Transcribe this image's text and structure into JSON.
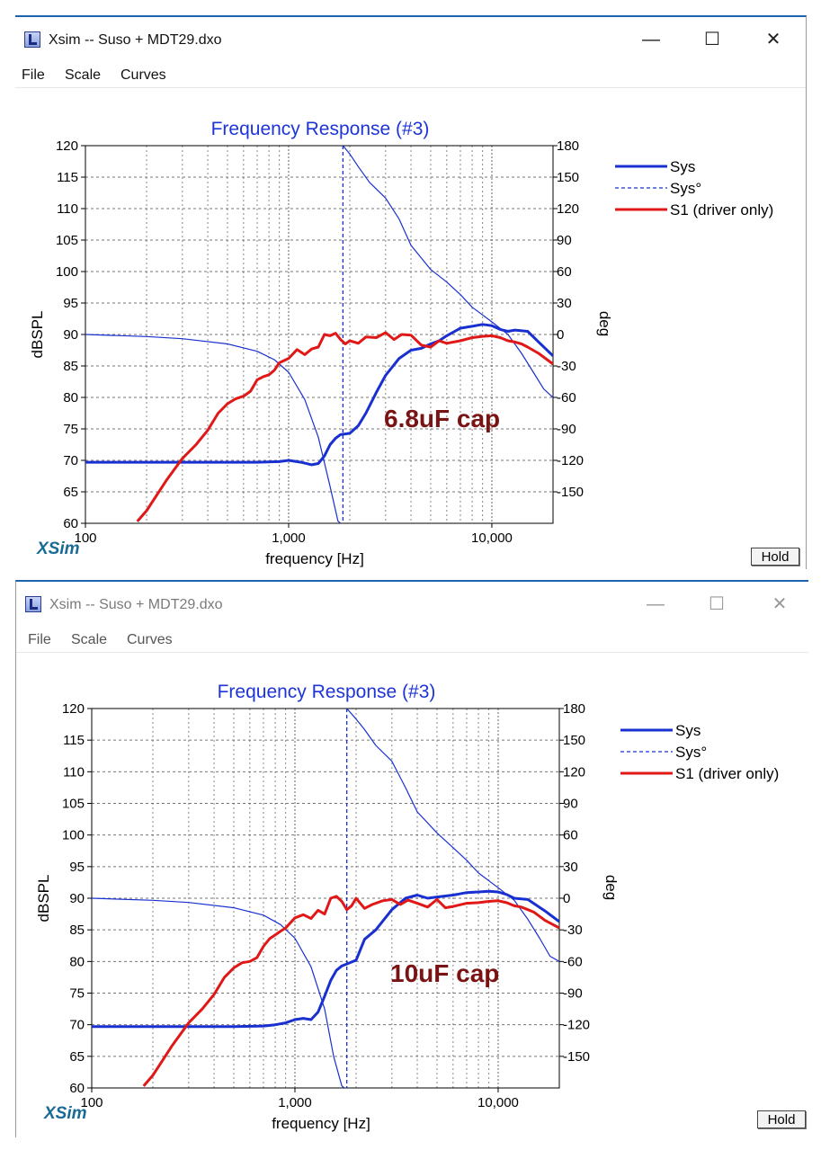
{
  "windows": [
    {
      "title": "Xsim -- Suso + MDT29.dxo",
      "menu": [
        "File",
        "Scale",
        "Curves"
      ],
      "window_controls": {
        "minimize": "—",
        "maximize": "☐",
        "close": "✕"
      },
      "annotation": "6.8uF cap",
      "logo": "XSim",
      "hold_label": "Hold"
    },
    {
      "title": "Xsim -- Suso + MDT29.dxo",
      "menu": [
        "File",
        "Scale",
        "Curves"
      ],
      "window_controls": {
        "minimize": "—",
        "maximize": "☐",
        "close": "✕"
      },
      "annotation": "10uF cap",
      "logo": "XSim",
      "hold_label": "Hold"
    }
  ],
  "colors": {
    "title_blue": "#1d35d8",
    "sys": "#1930d0",
    "driver": "#e01818",
    "annotation": "#7a1414",
    "active_border": "#1f62b0"
  },
  "chart_data": [
    {
      "type": "line",
      "title": "Frequency Response (#3)",
      "xlabel": "frequency [Hz]",
      "ylabel": "dBSPL",
      "y2label": "deg",
      "xscale": "log",
      "xlim": [
        100,
        20000
      ],
      "ylim": [
        60,
        120
      ],
      "y2lim": [
        -180,
        180
      ],
      "xticks": [
        "100",
        "1,000",
        "10,000"
      ],
      "yticks": [
        "60",
        "65",
        "70",
        "75",
        "80",
        "85",
        "90",
        "95",
        "100",
        "105",
        "110",
        "115",
        "120"
      ],
      "y2ticks": [
        "-150",
        "-120",
        "-90",
        "-60",
        "-30",
        "0",
        "30",
        "60",
        "90",
        "120",
        "150",
        "180"
      ],
      "grid": true,
      "legend_position": "right",
      "series": [
        {
          "name": "Sys",
          "axis": "left",
          "style": "solid-thick",
          "x": [
            100,
            200,
            400,
            700,
            900,
            1000,
            1150,
            1300,
            1400,
            1500,
            1600,
            1700,
            1800,
            1900,
            2000,
            2200,
            2400,
            2700,
            3000,
            3500,
            4000,
            4500,
            5000,
            5500,
            6000,
            7000,
            8000,
            9000,
            10000,
            11000,
            12000,
            13000,
            15000,
            17000,
            20000
          ],
          "y": [
            69.7,
            69.7,
            69.7,
            69.7,
            69.8,
            70.0,
            69.7,
            69.3,
            69.5,
            70.7,
            72.5,
            73.5,
            74.1,
            74.2,
            74.3,
            75.5,
            77.5,
            80.8,
            83.5,
            86.2,
            87.5,
            87.8,
            88.5,
            89.0,
            89.8,
            91.0,
            91.3,
            91.6,
            91.4,
            90.8,
            90.5,
            90.7,
            90.5,
            88.8,
            86.6
          ]
        },
        {
          "name": "Sys°",
          "axis": "right",
          "style": "dashed",
          "x": [
            100,
            200,
            300,
            500,
            700,
            850,
            1000,
            1200,
            1400,
            1600,
            1750,
            1800,
            1850,
            2000,
            2200,
            2500,
            3000,
            3500,
            4000,
            5000,
            6000,
            7000,
            8000,
            10000,
            12000,
            14000,
            16000,
            18000,
            20000
          ],
          "y": [
            0,
            -2,
            -4,
            -9,
            -16,
            -24,
            -36,
            -62,
            -98,
            -145,
            -178,
            -180,
            180,
            172,
            160,
            145,
            130,
            110,
            85,
            62,
            50,
            38,
            26,
            12,
            0,
            -18,
            -36,
            -52,
            -60
          ]
        },
        {
          "name": "S1 (driver only)",
          "axis": "left",
          "style": "solid-thick",
          "x": [
            180,
            200,
            250,
            300,
            350,
            400,
            450,
            500,
            550,
            600,
            650,
            700,
            750,
            800,
            850,
            900,
            1000,
            1100,
            1200,
            1300,
            1400,
            1500,
            1600,
            1700,
            1800,
            1900,
            2000,
            2200,
            2400,
            2700,
            3000,
            3300,
            3600,
            4000,
            4500,
            5000,
            5500,
            6000,
            7000,
            8000,
            9000,
            10000,
            11000,
            12000,
            13000,
            14000,
            15000,
            17000,
            20000
          ],
          "y": [
            60.3,
            62.0,
            66.8,
            70.3,
            72.5,
            74.8,
            77.5,
            79.0,
            79.8,
            80.2,
            81.0,
            82.8,
            83.3,
            83.6,
            84.3,
            85.5,
            86.2,
            87.6,
            86.8,
            87.7,
            88.0,
            90.0,
            89.8,
            90.2,
            89.2,
            88.5,
            89.0,
            88.6,
            89.6,
            89.5,
            90.3,
            89.2,
            90.0,
            89.9,
            88.3,
            88.0,
            89.0,
            88.6,
            89.0,
            89.5,
            89.7,
            89.8,
            89.5,
            89.0,
            88.8,
            88.5,
            88.0,
            87.0,
            85.3
          ]
        }
      ]
    },
    {
      "type": "line",
      "title": "Frequency Response (#3)",
      "xlabel": "frequency [Hz]",
      "ylabel": "dBSPL",
      "y2label": "deg",
      "xscale": "log",
      "xlim": [
        100,
        20000
      ],
      "ylim": [
        60,
        120
      ],
      "y2lim": [
        -180,
        180
      ],
      "xticks": [
        "100",
        "1,000",
        "10,000"
      ],
      "yticks": [
        "60",
        "65",
        "70",
        "75",
        "80",
        "85",
        "90",
        "95",
        "100",
        "105",
        "110",
        "115",
        "120"
      ],
      "y2ticks": [
        "-150",
        "-120",
        "-90",
        "-60",
        "-30",
        "0",
        "30",
        "60",
        "90",
        "120",
        "150",
        "180"
      ],
      "grid": true,
      "legend_position": "right",
      "series": [
        {
          "name": "Sys",
          "axis": "left",
          "style": "solid-thick",
          "x": [
            100,
            200,
            300,
            500,
            700,
            800,
            900,
            1000,
            1100,
            1200,
            1300,
            1400,
            1500,
            1600,
            1700,
            1800,
            2000,
            2200,
            2500,
            3000,
            3500,
            4000,
            4500,
            5000,
            6000,
            7000,
            8000,
            9000,
            10000,
            11000,
            12000,
            14000,
            17000,
            20000
          ],
          "y": [
            69.7,
            69.7,
            69.7,
            69.7,
            69.8,
            70.0,
            70.3,
            70.8,
            71.0,
            70.8,
            72.0,
            74.5,
            77.0,
            78.6,
            79.3,
            79.6,
            80.2,
            83.5,
            85.0,
            88.2,
            90.0,
            90.5,
            90.0,
            90.2,
            90.5,
            90.9,
            91.0,
            91.1,
            91.0,
            90.6,
            90.0,
            89.8,
            88.0,
            86.3
          ]
        },
        {
          "name": "Sys°",
          "axis": "right",
          "style": "dashed",
          "x": [
            100,
            200,
            300,
            500,
            700,
            850,
            1000,
            1200,
            1400,
            1550,
            1700,
            1750,
            1800,
            2000,
            2200,
            2500,
            3000,
            3500,
            4000,
            5000,
            6000,
            7000,
            8000,
            10000,
            12000,
            14000,
            16000,
            18000,
            20000
          ],
          "y": [
            0,
            -2,
            -4,
            -9,
            -16,
            -25,
            -38,
            -65,
            -105,
            -150,
            -178,
            -180,
            180,
            170,
            160,
            145,
            130,
            105,
            82,
            62,
            48,
            36,
            24,
            10,
            -2,
            -20,
            -38,
            -55,
            -60
          ]
        },
        {
          "name": "S1 (driver only)",
          "axis": "left",
          "style": "solid-thick",
          "x": [
            180,
            200,
            250,
            300,
            350,
            400,
            450,
            500,
            550,
            600,
            650,
            700,
            750,
            800,
            850,
            900,
            1000,
            1100,
            1200,
            1300,
            1400,
            1500,
            1600,
            1700,
            1800,
            1900,
            2000,
            2200,
            2400,
            2700,
            3000,
            3300,
            3600,
            4000,
            4500,
            5000,
            5500,
            6000,
            7000,
            8000,
            9000,
            10000,
            11000,
            12000,
            13000,
            14000,
            15000,
            17000,
            20000
          ],
          "y": [
            60.3,
            62.0,
            66.8,
            70.3,
            72.5,
            74.8,
            77.5,
            79.0,
            79.8,
            80.0,
            80.6,
            82.4,
            83.6,
            84.2,
            84.8,
            85.3,
            86.9,
            87.4,
            86.8,
            88.1,
            87.5,
            90.0,
            90.3,
            89.5,
            88.2,
            88.8,
            90.0,
            88.4,
            89.0,
            89.6,
            89.8,
            89.0,
            89.7,
            89.2,
            88.6,
            89.8,
            88.5,
            88.7,
            89.2,
            89.3,
            89.5,
            89.6,
            89.3,
            88.8,
            88.6,
            88.2,
            87.8,
            86.5,
            85.3
          ]
        }
      ]
    }
  ]
}
